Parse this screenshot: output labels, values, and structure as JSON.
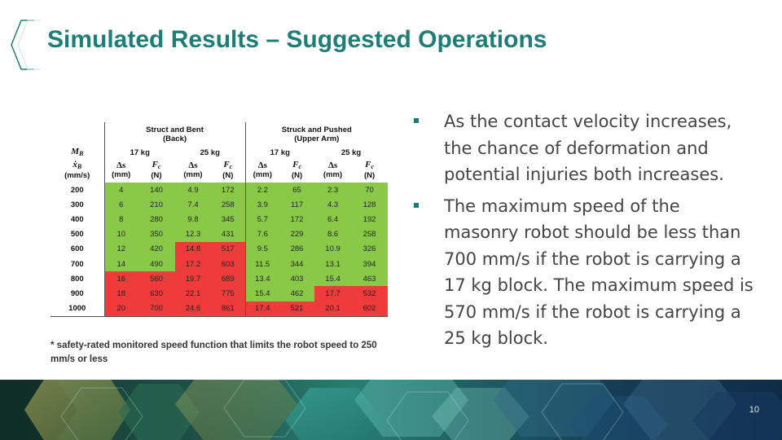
{
  "slide": {
    "title": "Simulated Results – Suggested Operations",
    "page_number": "10",
    "accent_color": "#1f7d77"
  },
  "table": {
    "group_headers": [
      {
        "line1": "Struct and Bent",
        "line2": "(Back)"
      },
      {
        "line1": "Struck and Pushed",
        "line2": "(Upper Arm)"
      }
    ],
    "mass_label": "M_B",
    "mass_headers": [
      "17 kg",
      "25 kg",
      "17 kg",
      "25 kg"
    ],
    "velocity_label": "ẋ_B",
    "velocity_unit": "(mm/s)",
    "col_symbols": [
      "Δs",
      "F_c",
      "Δs",
      "F_c",
      "Δs",
      "F_c",
      "Δs",
      "F_c"
    ],
    "col_units": [
      "(mm)",
      "(N)",
      "(mm)",
      "(N)",
      "(mm)",
      "(N)",
      "(mm)",
      "(N)"
    ],
    "green_color": "#8ac948",
    "red_color": "#ef3b3b",
    "rows": [
      {
        "v": "200",
        "cells": [
          "4",
          "140",
          "4.9",
          "172",
          "2.2",
          "65",
          "2.3",
          "70"
        ],
        "status": [
          "g",
          "g",
          "g",
          "g",
          "g",
          "g",
          "g",
          "g"
        ]
      },
      {
        "v": "300",
        "cells": [
          "6",
          "210",
          "7.4",
          "258",
          "3.9",
          "117",
          "4.3",
          "128"
        ],
        "status": [
          "g",
          "g",
          "g",
          "g",
          "g",
          "g",
          "g",
          "g"
        ]
      },
      {
        "v": "400",
        "cells": [
          "8",
          "280",
          "9.8",
          "345",
          "5.7",
          "172",
          "6.4",
          "192"
        ],
        "status": [
          "g",
          "g",
          "g",
          "g",
          "g",
          "g",
          "g",
          "g"
        ]
      },
      {
        "v": "500",
        "cells": [
          "10",
          "350",
          "12.3",
          "431",
          "7.6",
          "229",
          "8.6",
          "258"
        ],
        "status": [
          "g",
          "g",
          "g",
          "g",
          "g",
          "g",
          "g",
          "g"
        ]
      },
      {
        "v": "600",
        "cells": [
          "12",
          "420",
          "14.8",
          "517",
          "9.5",
          "286",
          "10.9",
          "326"
        ],
        "status": [
          "g",
          "g",
          "r",
          "r",
          "g",
          "g",
          "g",
          "g"
        ]
      },
      {
        "v": "700",
        "cells": [
          "14",
          "490",
          "17.2",
          "603",
          "11.5",
          "344",
          "13.1",
          "394"
        ],
        "status": [
          "g",
          "g",
          "r",
          "r",
          "g",
          "g",
          "g",
          "g"
        ]
      },
      {
        "v": "800",
        "cells": [
          "16",
          "560",
          "19.7",
          "689",
          "13.4",
          "403",
          "15.4",
          "463"
        ],
        "status": [
          "r",
          "r",
          "r",
          "r",
          "g",
          "g",
          "g",
          "g"
        ]
      },
      {
        "v": "900",
        "cells": [
          "18",
          "630",
          "22.1",
          "775",
          "15.4",
          "462",
          "17.7",
          "532"
        ],
        "status": [
          "r",
          "r",
          "r",
          "r",
          "g",
          "g",
          "r",
          "r"
        ]
      },
      {
        "v": "1000",
        "cells": [
          "20",
          "700",
          "24.6",
          "861",
          "17.4",
          "521",
          "20.1",
          "602"
        ],
        "status": [
          "r",
          "r",
          "r",
          "r",
          "r",
          "r",
          "r",
          "r"
        ]
      }
    ],
    "footnote": "* safety-rated  monitored speed function that limits the robot speed to 250 mm/s or less"
  },
  "bullets": [
    "As the contact velocity increases, the chance of deformation and potential injuries both increases.",
    "The maximum speed of the masonry robot should be less than 700 mm/s if the robot is carrying a 17 kg block. The maximum speed is 570 mm/s if the robot is carrying a 25 kg block."
  ]
}
